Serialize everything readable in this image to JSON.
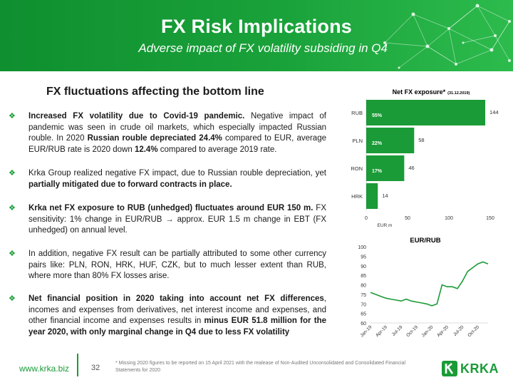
{
  "header": {
    "title": "FX Risk Implications",
    "subtitle": "Adverse impact of FX volatility subsiding in Q4"
  },
  "section_title": "FX fluctuations affecting the bottom line",
  "bullets": [
    {
      "parts": [
        {
          "b": true,
          "t": "Increased FX volatility due to Covid-19 pandemic."
        },
        {
          "b": false,
          "t": " Negative impact of pandemic was seen in crude oil markets, which especially impacted Russian rouble. In 2020 "
        },
        {
          "b": true,
          "t": "Russian rouble depreciated 24.4%"
        },
        {
          "b": false,
          "t": " compared to EUR, average EUR/RUB rate is 2020 down "
        },
        {
          "b": true,
          "t": "12.4%"
        },
        {
          "b": false,
          "t": " compared to average 2019 rate."
        }
      ]
    },
    {
      "parts": [
        {
          "b": false,
          "t": "Krka Group realized negative FX impact, due to Russian rouble depreciation, yet "
        },
        {
          "b": true,
          "t": "partially mitigated due to forward contracts in place."
        }
      ]
    },
    {
      "parts": [
        {
          "b": true,
          "t": "Krka net FX exposure to RUB (unhedged) fluctuates around EUR 150 m."
        },
        {
          "b": false,
          "t": " FX sensitivity: 1% change in EUR/RUB → approx. EUR 1.5 m change in EBT (FX unhedged) on annual level."
        }
      ]
    },
    {
      "parts": [
        {
          "b": false,
          "t": "In addition, negative FX result can be partially attributed to some other currency pairs like: PLN, RON, HRK, HUF, CZK, but to much lesser extent than RUB, where more than 80% FX losses arise."
        }
      ]
    },
    {
      "parts": [
        {
          "b": true,
          "t": "Net financial position in 2020 taking into account net FX differences"
        },
        {
          "b": false,
          "t": ", incomes and expenses from derivatives, net interest income and expenses, and other financial income and expenses results in "
        },
        {
          "b": true,
          "t": "minus EUR 51.8 million for the year 2020, with only marginal change in Q4 due to less FX volatility"
        }
      ]
    }
  ],
  "chart_data": [
    {
      "type": "bar",
      "orientation": "horizontal",
      "title": "Net FX exposure*",
      "title_note": "(31.12.2019)",
      "categories": [
        "RUB",
        "PLN",
        "RON",
        "HRK"
      ],
      "values": [
        144,
        58,
        46,
        14
      ],
      "percent_labels": [
        "55%",
        "22%",
        "17%",
        ""
      ],
      "xlabel": "EUR m",
      "xlim": [
        0,
        150
      ],
      "xticks": [
        "0",
        "50",
        "100",
        "150"
      ],
      "bar_color": "#1a9b37"
    },
    {
      "type": "line",
      "title": "EUR/RUB",
      "ylim": [
        60,
        100
      ],
      "yticks": [
        "100",
        "95",
        "90",
        "85",
        "80",
        "75",
        "70",
        "65",
        "60"
      ],
      "xticks": [
        "Jan-19",
        "Apr-19",
        "Jul-19",
        "Oct-19",
        "Jan-20",
        "Apr-20",
        "Jul-20",
        "Oct-20"
      ],
      "series": [
        {
          "line_color": "#1a9b37",
          "x": [
            "2019-01",
            "2019-02",
            "2019-03",
            "2019-04",
            "2019-05",
            "2019-06",
            "2019-07",
            "2019-08",
            "2019-09",
            "2019-10",
            "2019-11",
            "2019-12",
            "2020-01",
            "2020-02",
            "2020-03",
            "2020-04",
            "2020-05",
            "2020-06",
            "2020-07",
            "2020-08",
            "2020-09",
            "2020-10",
            "2020-11",
            "2020-12"
          ],
          "values": [
            76,
            75,
            74,
            73,
            72.5,
            72,
            71.5,
            72.5,
            71.5,
            71,
            70.5,
            70,
            69,
            70,
            80,
            79,
            79,
            78,
            82,
            87,
            89,
            91,
            92,
            91
          ]
        }
      ]
    }
  ],
  "footer": {
    "link": "www.krka.biz",
    "page": "32",
    "footnote": "* Missing 2020 figures to be reported on 15 April 2021 with the realease of Non-Audited Unconsolidated and Consolidated Financial Statements for 2020",
    "logo_text": "KRKA"
  }
}
